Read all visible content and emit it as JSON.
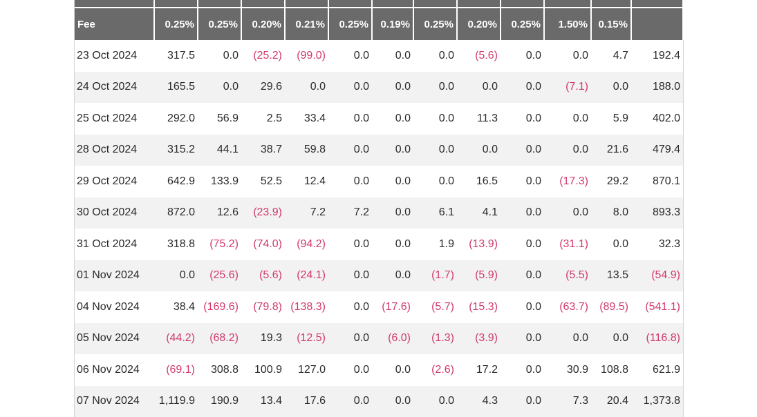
{
  "table": {
    "header_label": "Fee",
    "fees": [
      "0.25%",
      "0.25%",
      "0.20%",
      "0.21%",
      "0.25%",
      "0.19%",
      "0.25%",
      "0.20%",
      "0.25%",
      "1.50%",
      "0.15%",
      ""
    ],
    "rows": [
      {
        "date": "23 Oct 2024",
        "values": [
          "317.5",
          "0.0",
          "(25.2)",
          "(99.0)",
          "0.0",
          "0.0",
          "0.0",
          "(5.6)",
          "0.0",
          "0.0",
          "4.7",
          "192.4"
        ]
      },
      {
        "date": "24 Oct 2024",
        "values": [
          "165.5",
          "0.0",
          "29.6",
          "0.0",
          "0.0",
          "0.0",
          "0.0",
          "0.0",
          "0.0",
          "(7.1)",
          "0.0",
          "188.0"
        ]
      },
      {
        "date": "25 Oct 2024",
        "values": [
          "292.0",
          "56.9",
          "2.5",
          "33.4",
          "0.0",
          "0.0",
          "0.0",
          "11.3",
          "0.0",
          "0.0",
          "5.9",
          "402.0"
        ]
      },
      {
        "date": "28 Oct 2024",
        "values": [
          "315.2",
          "44.1",
          "38.7",
          "59.8",
          "0.0",
          "0.0",
          "0.0",
          "0.0",
          "0.0",
          "0.0",
          "21.6",
          "479.4"
        ]
      },
      {
        "date": "29 Oct 2024",
        "values": [
          "642.9",
          "133.9",
          "52.5",
          "12.4",
          "0.0",
          "0.0",
          "0.0",
          "16.5",
          "0.0",
          "(17.3)",
          "29.2",
          "870.1"
        ]
      },
      {
        "date": "30 Oct 2024",
        "values": [
          "872.0",
          "12.6",
          "(23.9)",
          "7.2",
          "7.2",
          "0.0",
          "6.1",
          "4.1",
          "0.0",
          "0.0",
          "8.0",
          "893.3"
        ]
      },
      {
        "date": "31 Oct 2024",
        "values": [
          "318.8",
          "(75.2)",
          "(74.0)",
          "(94.2)",
          "0.0",
          "0.0",
          "1.9",
          "(13.9)",
          "0.0",
          "(31.1)",
          "0.0",
          "32.3"
        ]
      },
      {
        "date": "01 Nov 2024",
        "values": [
          "0.0",
          "(25.6)",
          "(5.6)",
          "(24.1)",
          "0.0",
          "0.0",
          "(1.7)",
          "(5.9)",
          "0.0",
          "(5.5)",
          "13.5",
          "(54.9)"
        ]
      },
      {
        "date": "04 Nov 2024",
        "values": [
          "38.4",
          "(169.6)",
          "(79.8)",
          "(138.3)",
          "0.0",
          "(17.6)",
          "(5.7)",
          "(15.3)",
          "0.0",
          "(63.7)",
          "(89.5)",
          "(541.1)"
        ]
      },
      {
        "date": "05 Nov 2024",
        "values": [
          "(44.2)",
          "(68.2)",
          "19.3",
          "(12.5)",
          "0.0",
          "(6.0)",
          "(1.3)",
          "(3.9)",
          "0.0",
          "0.0",
          "0.0",
          "(116.8)"
        ]
      },
      {
        "date": "06 Nov 2024",
        "values": [
          "(69.1)",
          "308.8",
          "100.9",
          "127.0",
          "0.0",
          "0.0",
          "(2.6)",
          "17.2",
          "0.0",
          "30.9",
          "108.8",
          "621.9"
        ]
      },
      {
        "date": "07 Nov 2024",
        "values": [
          "1,119.9",
          "190.9",
          "13.4",
          "17.6",
          "0.0",
          "0.0",
          "0.0",
          "4.3",
          "0.0",
          "7.3",
          "20.4",
          "1,373.8"
        ]
      }
    ]
  },
  "colors": {
    "header_bg": "#6a6a6a",
    "negative": "#d1396a",
    "row_stripe": "#f2f2f2"
  }
}
